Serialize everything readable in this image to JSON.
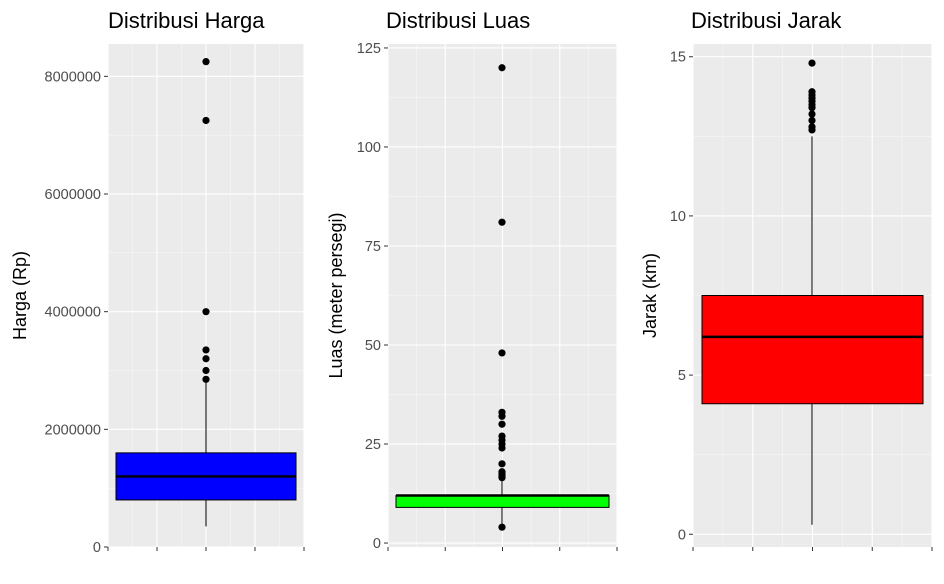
{
  "chart_data": [
    {
      "type": "box",
      "title": "Distribusi Harga",
      "xlabel": "",
      "ylabel": "Harga (Rp)",
      "ylim": [
        0,
        8550000
      ],
      "yticks": [
        0,
        2000000,
        4000000,
        6000000,
        8000000
      ],
      "ytick_labels": [
        "0",
        "2000000",
        "4000000",
        "6000000",
        "8000000"
      ],
      "fill_color": "#0000ff",
      "box": {
        "q1": 800000,
        "median": 1200000,
        "q3": 1600000,
        "whisker_low": 350000,
        "whisker_high": 2850000
      },
      "outliers": [
        8250000,
        7250000,
        4000000,
        3350000,
        3200000,
        3000000,
        2850000
      ]
    },
    {
      "type": "box",
      "title": "Distribusi Luas",
      "xlabel": "",
      "ylabel": "Luas (meter persegi)",
      "ylim": [
        -1,
        126
      ],
      "yticks": [
        0,
        25,
        50,
        75,
        100,
        125
      ],
      "ytick_labels": [
        "0",
        "25",
        "50",
        "75",
        "100",
        "125"
      ],
      "fill_color": "#00ff00",
      "box": {
        "q1": 9,
        "median": 12,
        "q3": 12,
        "whisker_low": 4,
        "whisker_high": 16
      },
      "outliers": [
        120,
        81,
        48,
        33,
        32,
        30,
        27,
        26,
        25,
        24,
        20,
        18,
        17.5,
        17,
        16.5,
        4
      ]
    },
    {
      "type": "box",
      "title": "Distribusi Jarak",
      "xlabel": "",
      "ylabel": "Jarak (km)",
      "ylim": [
        -0.4,
        15.4
      ],
      "yticks": [
        0,
        5,
        10,
        15
      ],
      "ytick_labels": [
        "0",
        "5",
        "10",
        "15"
      ],
      "fill_color": "#ff0000",
      "box": {
        "q1": 4.1,
        "median": 6.2,
        "q3": 7.5,
        "whisker_low": 0.3,
        "whisker_high": 12.5
      },
      "outliers": [
        14.8,
        13.9,
        13.8,
        13.7,
        13.6,
        13.5,
        13.4,
        13.2,
        13.0,
        12.8,
        12.7
      ]
    }
  ]
}
